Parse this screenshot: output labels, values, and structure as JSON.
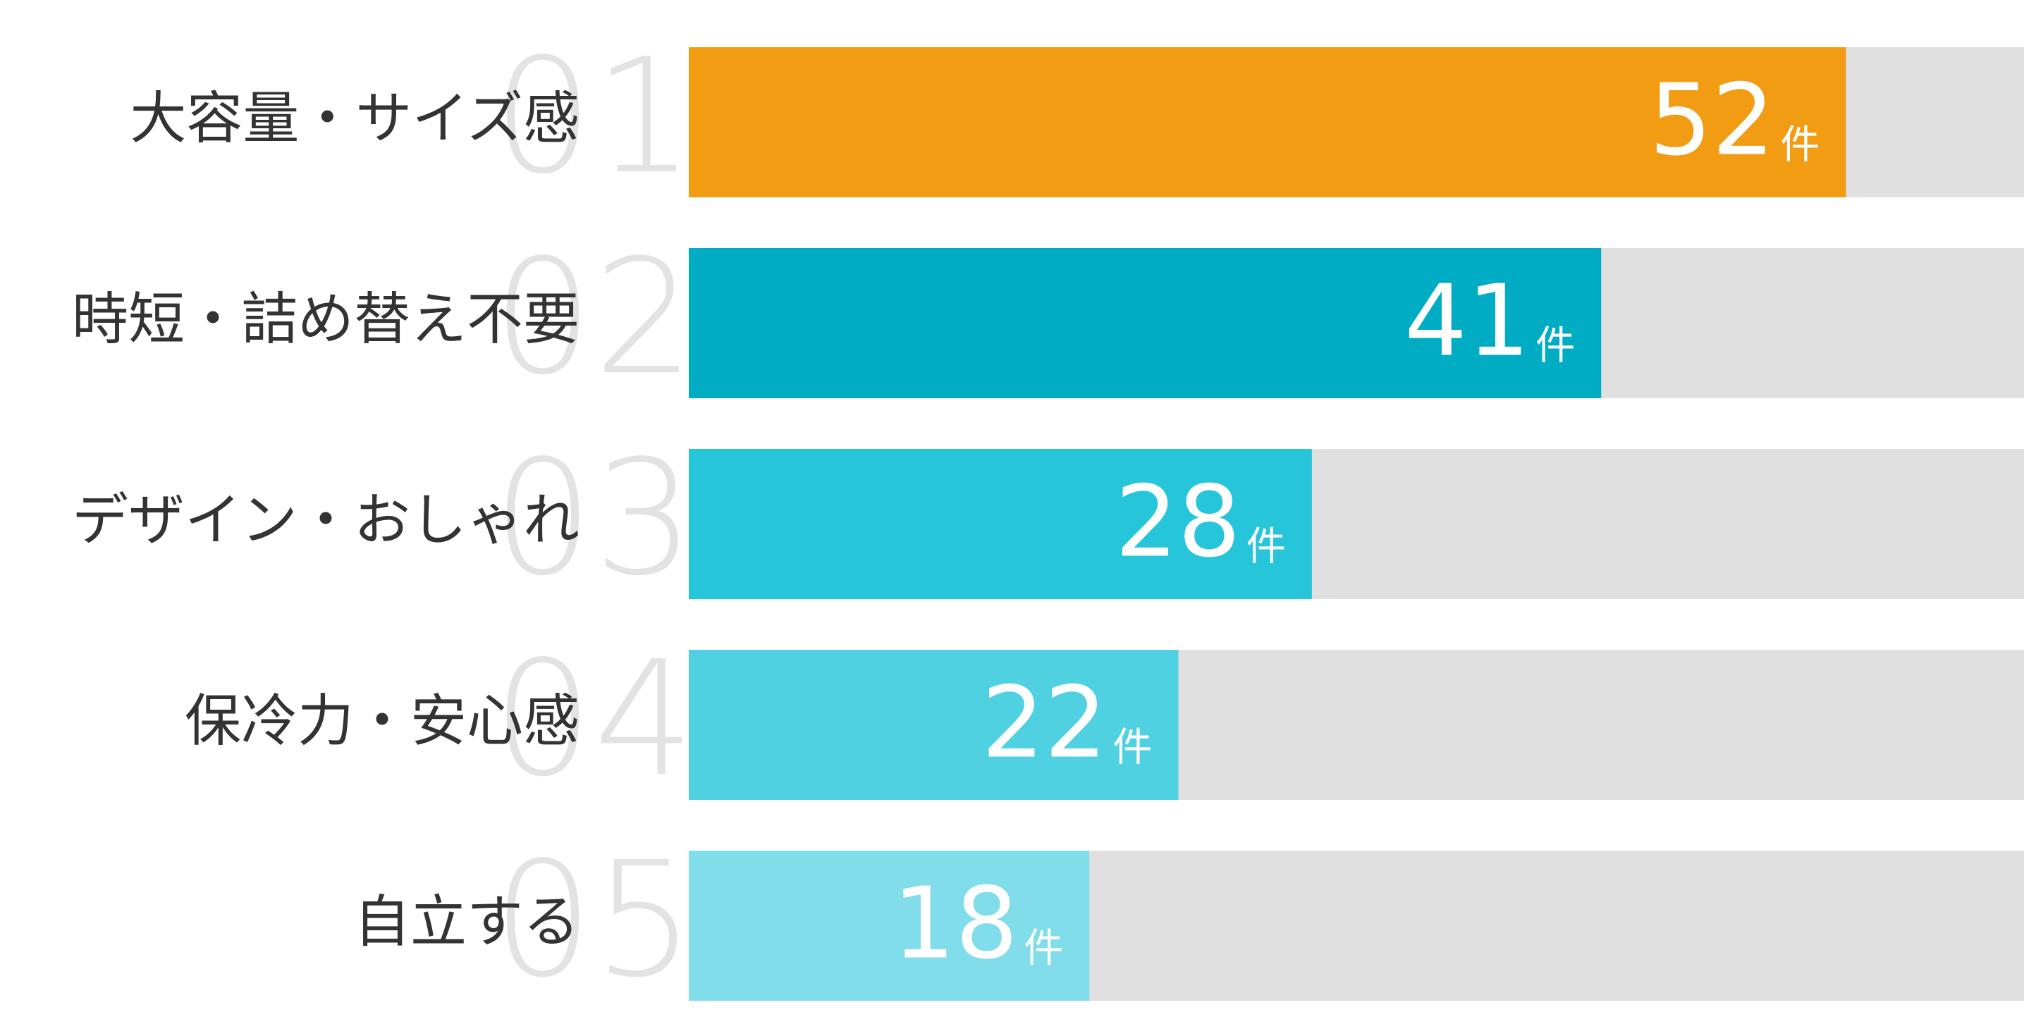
{
  "chart_data": {
    "type": "bar",
    "orientation": "horizontal",
    "ranks": [
      "01",
      "02",
      "03",
      "04",
      "05"
    ],
    "categories": [
      "大容量・サイズ感",
      "時短・詰め替え不要",
      "デザイン・おしゃれ",
      "保冷力・安心感",
      "自立する"
    ],
    "values": [
      52,
      41,
      28,
      22,
      18
    ],
    "unit": "件",
    "colors": [
      "#f29c14",
      "#00acc4",
      "#26c5d9",
      "#4fd1e2",
      "#80dde9"
    ],
    "track_color": "#e0e0e0",
    "xlim": [
      0,
      60
    ]
  }
}
